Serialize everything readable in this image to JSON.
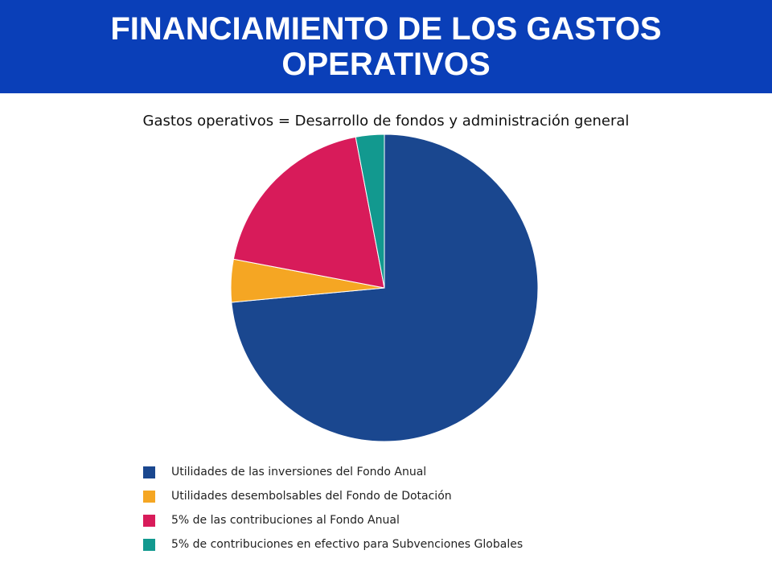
{
  "header": {
    "title": "FINANCIAMIENTO DE LOS GASTOS OPERATIVOS"
  },
  "subtitle": "Gastos operativos = Desarrollo de fondos y administración general",
  "chart_data": {
    "type": "pie",
    "legend_position": "bottom-left",
    "slices": [
      {
        "label": "Utilidades de las inversiones del Fondo Anual",
        "value": 73.5,
        "color": "#1a478f"
      },
      {
        "label": "Utilidades desembolsables del Fondo de Dotación",
        "value": 4.5,
        "color": "#f5a623"
      },
      {
        "label": "5% de las contribuciones al Fondo Anual",
        "value": 19,
        "color": "#d81b5a"
      },
      {
        "label": "5% de contribuciones en efectivo para Subvenciones Globales",
        "value": 3,
        "color": "#12998f"
      }
    ]
  }
}
